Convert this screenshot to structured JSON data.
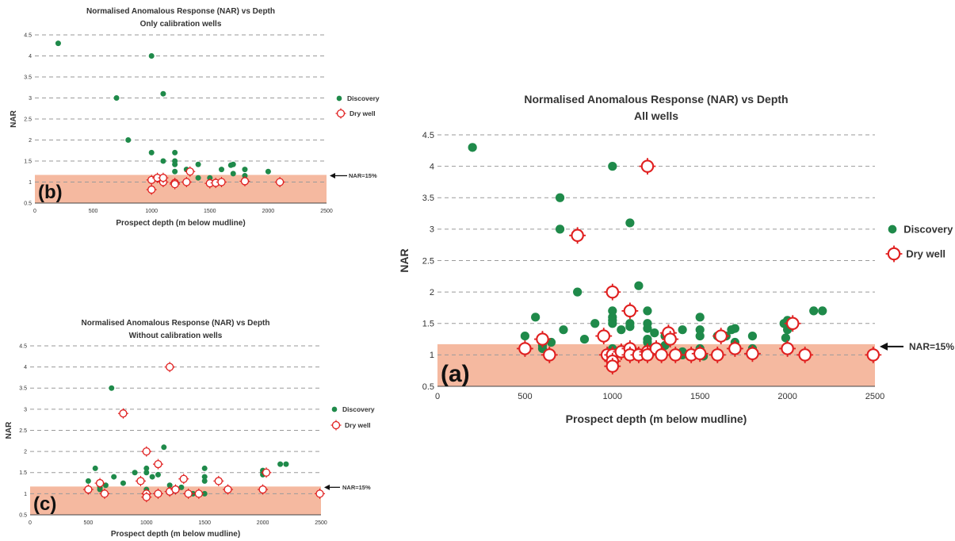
{
  "colors": {
    "discovery": "#1f8a4a",
    "dry_well": "#e02020",
    "shade": "#f5b9a0",
    "grid": "#9a9a9a"
  },
  "chart_data": [
    {
      "id": "a",
      "type": "scatter",
      "panel_label": "(a)",
      "title": "Normalised Anomalous Response (NAR) vs Depth",
      "subtitle": "All wells",
      "xlabel": "Prospect depth (m below mudline)",
      "ylabel": "NAR",
      "xlim": [
        0,
        2500
      ],
      "ylim": [
        0.5,
        4.5
      ],
      "x_ticks": [
        "0",
        "500",
        "1000",
        "1500",
        "2000",
        "2500"
      ],
      "y_ticks": [
        "0.5",
        "1",
        "1.5",
        "2",
        "2.5",
        "3",
        "3.5",
        "4",
        "4.5"
      ],
      "grid": true,
      "legend_position": "right",
      "shaded_band": [
        0.5,
        1.17
      ],
      "annotation": "NAR=15%",
      "series": [
        {
          "name": "Discovery",
          "marker": "filled-circle",
          "points": [
            [
              200,
              4.3
            ],
            [
              500,
              1.3
            ],
            [
              560,
              1.6
            ],
            [
              600,
              1.15
            ],
            [
              600,
              1.1
            ],
            [
              650,
              1.2
            ],
            [
              700,
              3.5
            ],
            [
              700,
              3.0
            ],
            [
              720,
              1.4
            ],
            [
              800,
              2.0
            ],
            [
              840,
              1.25
            ],
            [
              900,
              1.5
            ],
            [
              1000,
              4.0
            ],
            [
              1000,
              1.7
            ],
            [
              1000,
              1.6
            ],
            [
              1000,
              1.55
            ],
            [
              1000,
              1.5
            ],
            [
              1000,
              1.1
            ],
            [
              1050,
              1.4
            ],
            [
              1100,
              3.1
            ],
            [
              1100,
              1.5
            ],
            [
              1100,
              1.45
            ],
            [
              1100,
              1.0
            ],
            [
              1150,
              2.1
            ],
            [
              1150,
              1.0
            ],
            [
              1200,
              1.7
            ],
            [
              1200,
              1.5
            ],
            [
              1200,
              1.42
            ],
            [
              1200,
              1.25
            ],
            [
              1200,
              1.2
            ],
            [
              1200,
              1.1
            ],
            [
              1240,
              1.35
            ],
            [
              1300,
              1.3
            ],
            [
              1300,
              1.15
            ],
            [
              1400,
              1.4
            ],
            [
              1400,
              1.05
            ],
            [
              1400,
              1.0
            ],
            [
              1500,
              1.6
            ],
            [
              1500,
              1.4
            ],
            [
              1500,
              1.3
            ],
            [
              1500,
              1.1
            ],
            [
              1500,
              1.0
            ],
            [
              1520,
              0.98
            ],
            [
              1600,
              1.3
            ],
            [
              1650,
              1.3
            ],
            [
              1680,
              1.4
            ],
            [
              1700,
              1.42
            ],
            [
              1700,
              1.2
            ],
            [
              1800,
              1.3
            ],
            [
              1800,
              1.1
            ],
            [
              1980,
              1.5
            ],
            [
              1990,
              1.27
            ],
            [
              2000,
              1.55
            ],
            [
              2000,
              1.45
            ],
            [
              2000,
              1.4
            ],
            [
              2150,
              1.7
            ],
            [
              2200,
              1.7
            ]
          ]
        },
        {
          "name": "Dry well",
          "marker": "open-diamond-cross",
          "points": [
            [
              500,
              1.1
            ],
            [
              600,
              1.25
            ],
            [
              640,
              1.0
            ],
            [
              800,
              2.9
            ],
            [
              950,
              1.3
            ],
            [
              970,
              1.0
            ],
            [
              1000,
              2.0
            ],
            [
              1000,
              1.0
            ],
            [
              1000,
              0.9
            ],
            [
              1000,
              0.82
            ],
            [
              1050,
              1.05
            ],
            [
              1100,
              1.7
            ],
            [
              1100,
              1.1
            ],
            [
              1100,
              1.0
            ],
            [
              1150,
              1.0
            ],
            [
              1200,
              4.0
            ],
            [
              1200,
              1.05
            ],
            [
              1200,
              1.0
            ],
            [
              1250,
              1.1
            ],
            [
              1280,
              1.0
            ],
            [
              1320,
              1.35
            ],
            [
              1330,
              1.25
            ],
            [
              1360,
              1.0
            ],
            [
              1450,
              1.0
            ],
            [
              1500,
              1.02
            ],
            [
              1600,
              1.0
            ],
            [
              1620,
              1.3
            ],
            [
              1700,
              1.1
            ],
            [
              1800,
              1.02
            ],
            [
              2000,
              1.1
            ],
            [
              2030,
              1.5
            ],
            [
              2100,
              1.0
            ],
            [
              2490,
              1.0
            ]
          ]
        }
      ]
    },
    {
      "id": "b",
      "type": "scatter",
      "panel_label": "(b)",
      "title": "Normalised Anomalous Response (NAR) vs Depth",
      "subtitle": "Only calibration wells",
      "xlabel": "Prospect depth (m below mudline)",
      "ylabel": "NAR",
      "xlim": [
        0,
        2500
      ],
      "ylim": [
        0.5,
        4.5
      ],
      "x_ticks": [
        "0",
        "500",
        "1000",
        "1500",
        "2000",
        "2500"
      ],
      "y_ticks": [
        "0.5",
        "1",
        "1.5",
        "2",
        "2.5",
        "3",
        "3.5",
        "4",
        "4.5"
      ],
      "grid": true,
      "legend_position": "right",
      "shaded_band": [
        0.5,
        1.17
      ],
      "annotation": "NAR=15%",
      "series": [
        {
          "name": "Discovery",
          "marker": "filled-circle",
          "points": [
            [
              200,
              4.3
            ],
            [
              700,
              3.0
            ],
            [
              800,
              2.0
            ],
            [
              1000,
              4.0
            ],
            [
              1000,
              1.7
            ],
            [
              1100,
              3.1
            ],
            [
              1100,
              1.5
            ],
            [
              1200,
              1.7
            ],
            [
              1200,
              1.5
            ],
            [
              1200,
              1.42
            ],
            [
              1200,
              1.25
            ],
            [
              1300,
              1.3
            ],
            [
              1400,
              1.42
            ],
            [
              1400,
              1.1
            ],
            [
              1500,
              1.1
            ],
            [
              1600,
              1.3
            ],
            [
              1680,
              1.4
            ],
            [
              1700,
              1.42
            ],
            [
              1700,
              1.2
            ],
            [
              1800,
              1.3
            ],
            [
              1800,
              1.15
            ],
            [
              2000,
              1.25
            ]
          ]
        },
        {
          "name": "Dry well",
          "marker": "open-diamond-cross",
          "points": [
            [
              1000,
              1.05
            ],
            [
              1000,
              0.82
            ],
            [
              1050,
              1.1
            ],
            [
              1100,
              1.0
            ],
            [
              1100,
              1.1
            ],
            [
              1200,
              0.98
            ],
            [
              1200,
              0.95
            ],
            [
              1300,
              1.0
            ],
            [
              1330,
              1.25
            ],
            [
              1500,
              0.97
            ],
            [
              1550,
              0.98
            ],
            [
              1600,
              1.0
            ],
            [
              1800,
              1.02
            ],
            [
              2100,
              1.0
            ]
          ]
        }
      ]
    },
    {
      "id": "c",
      "type": "scatter",
      "panel_label": "(c)",
      "title": "Normalised Anomalous Response (NAR) vs Depth",
      "subtitle": "Without calibration wells",
      "xlabel": "Prospect depth (m below mudline)",
      "ylabel": "NAR",
      "xlim": [
        0,
        2500
      ],
      "ylim": [
        0.5,
        4.5
      ],
      "x_ticks": [
        "0",
        "500",
        "1000",
        "1500",
        "2000",
        "2500"
      ],
      "y_ticks": [
        "0.5",
        "1",
        "1.5",
        "2",
        "2.5",
        "3",
        "3.5",
        "4",
        "4.5"
      ],
      "grid": true,
      "legend_position": "right",
      "shaded_band": [
        0.5,
        1.17
      ],
      "annotation": "NAR=15%",
      "series": [
        {
          "name": "Discovery",
          "marker": "filled-circle",
          "points": [
            [
              500,
              1.3
            ],
            [
              560,
              1.6
            ],
            [
              600,
              1.15
            ],
            [
              600,
              1.1
            ],
            [
              650,
              1.2
            ],
            [
              700,
              3.5
            ],
            [
              720,
              1.4
            ],
            [
              800,
              1.25
            ],
            [
              900,
              1.5
            ],
            [
              1000,
              1.6
            ],
            [
              1000,
              1.5
            ],
            [
              1000,
              1.1
            ],
            [
              1050,
              1.4
            ],
            [
              1100,
              1.45
            ],
            [
              1100,
              1.0
            ],
            [
              1150,
              2.1
            ],
            [
              1200,
              1.2
            ],
            [
              1300,
              1.15
            ],
            [
              1400,
              1.0
            ],
            [
              1500,
              1.6
            ],
            [
              1500,
              1.4
            ],
            [
              1500,
              1.3
            ],
            [
              1500,
              1.0
            ],
            [
              2000,
              1.55
            ],
            [
              2000,
              1.5
            ],
            [
              2000,
              1.45
            ],
            [
              2150,
              1.7
            ],
            [
              2200,
              1.7
            ]
          ]
        },
        {
          "name": "Dry well",
          "marker": "open-diamond-cross",
          "points": [
            [
              500,
              1.1
            ],
            [
              600,
              1.25
            ],
            [
              640,
              1.0
            ],
            [
              800,
              2.9
            ],
            [
              950,
              1.3
            ],
            [
              1000,
              2.0
            ],
            [
              1000,
              1.0
            ],
            [
              1000,
              0.92
            ],
            [
              1100,
              1.7
            ],
            [
              1100,
              1.0
            ],
            [
              1200,
              4.0
            ],
            [
              1200,
              1.05
            ],
            [
              1250,
              1.1
            ],
            [
              1320,
              1.35
            ],
            [
              1360,
              1.0
            ],
            [
              1450,
              1.0
            ],
            [
              1620,
              1.3
            ],
            [
              1700,
              1.1
            ],
            [
              2000,
              1.1
            ],
            [
              2030,
              1.5
            ],
            [
              2490,
              1.0
            ]
          ]
        }
      ]
    }
  ]
}
